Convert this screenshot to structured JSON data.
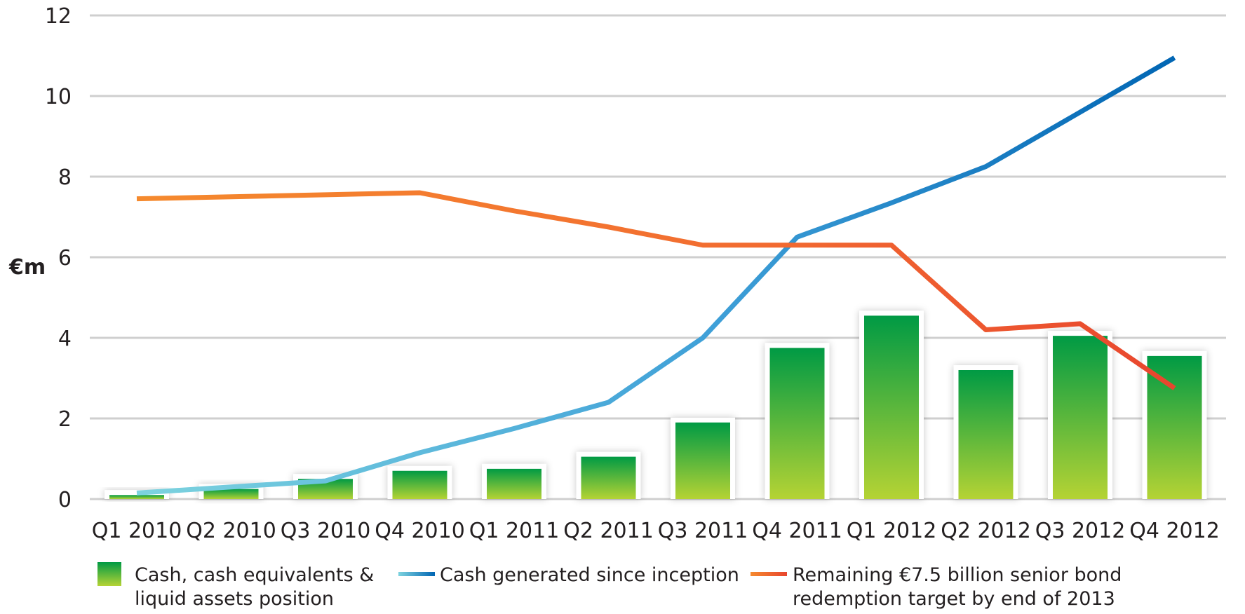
{
  "chart_data": {
    "type": "bar",
    "ylabel": "€m",
    "ylim": [
      0,
      12
    ],
    "yticks": [
      "0",
      "2",
      "4",
      "6",
      "8",
      "10",
      "12"
    ],
    "grid": true,
    "categories": [
      "Q1 2010",
      "Q2 2010",
      "Q3 2010",
      "Q4 2010",
      "Q1 2011",
      "Q2 2011",
      "Q3 2011",
      "Q4 2011",
      "Q1 2012",
      "Q2 2012",
      "Q3 2012",
      "Q4 2012"
    ],
    "series": [
      {
        "name": "Cash, cash equivalents & liquid assets position",
        "kind": "bar",
        "values": [
          0.1,
          0.25,
          0.5,
          0.7,
          0.75,
          1.05,
          1.9,
          3.75,
          4.55,
          3.2,
          4.05,
          3.55
        ]
      },
      {
        "name": "Cash generated since inception",
        "kind": "line",
        "values": [
          0.15,
          0.3,
          0.45,
          1.15,
          1.75,
          2.4,
          4.0,
          6.5,
          7.35,
          8.25,
          9.6,
          10.95
        ]
      },
      {
        "name": "Remaining €7.5 billion senior bond redemption target by end of 2013",
        "kind": "line",
        "values": [
          7.45,
          7.5,
          7.55,
          7.6,
          7.15,
          6.75,
          6.3,
          6.3,
          6.3,
          4.2,
          4.35,
          2.75
        ]
      }
    ],
    "legend": {
      "position": "bottom",
      "entries": [
        {
          "lines": [
            "Cash, cash equivalents &",
            "liquid assets position"
          ]
        },
        {
          "lines": [
            "Cash generated since inception"
          ]
        },
        {
          "lines": [
            "Remaining €7.5 billion senior bond",
            "redemption target by end of 2013"
          ]
        }
      ]
    },
    "colors": {
      "bar_top": "#009a44",
      "bar_bottom": "#b5d334",
      "cash_line_start": "#7dd3df",
      "cash_line_end": "#0065b3",
      "bond_line_start": "#f58a2e",
      "bond_line_end": "#e8452e",
      "grid": "#cfcfcf"
    }
  }
}
